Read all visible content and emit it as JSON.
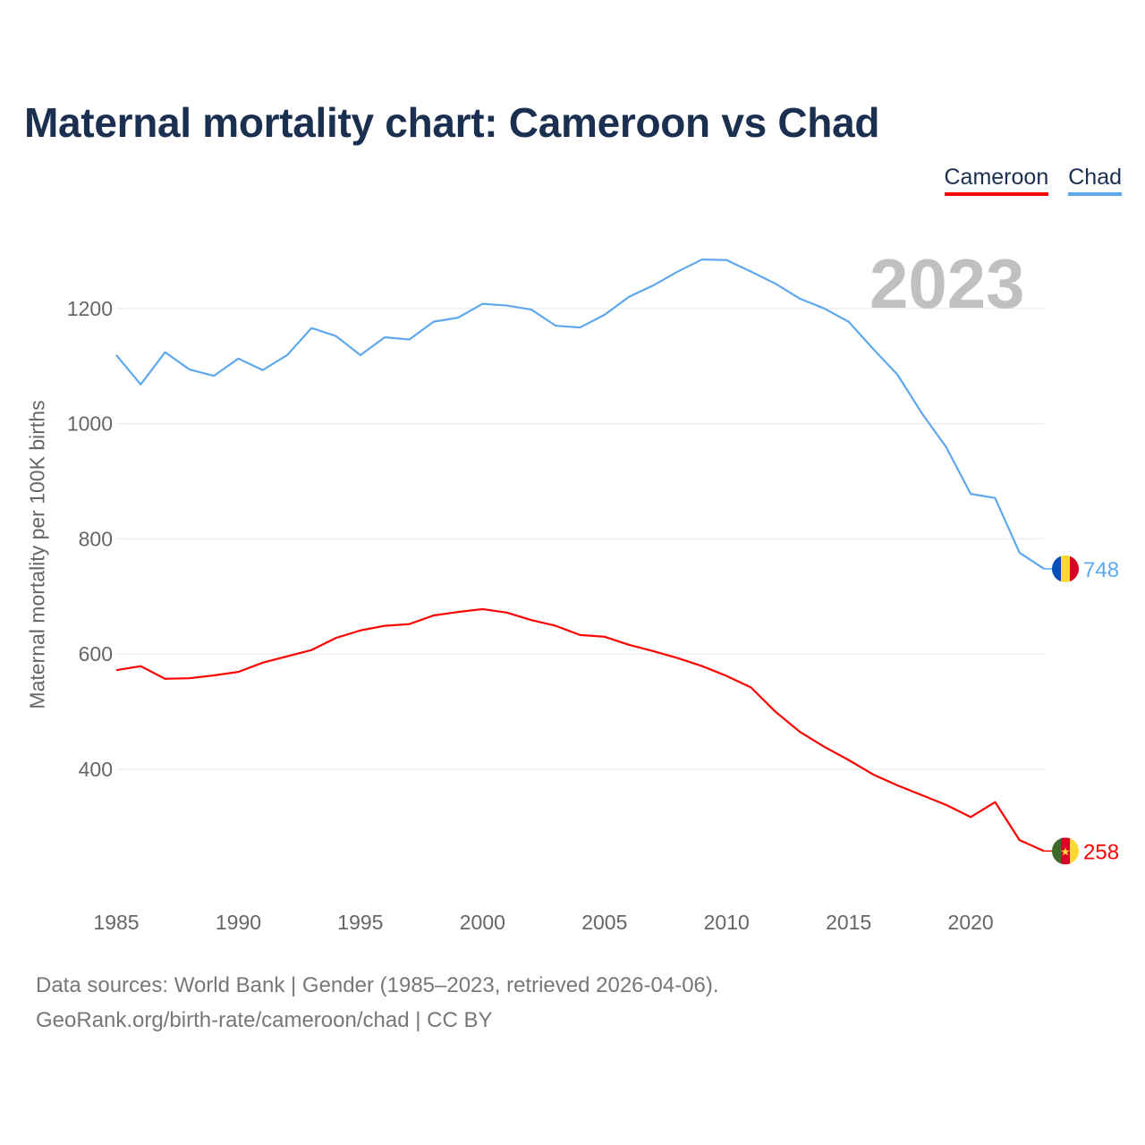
{
  "title": "Maternal mortality chart: Cameroon vs Chad",
  "current_year": "2023",
  "footer": {
    "line1": "Data sources: World Bank | Gender (1985–2023, retrieved 2026-04-06).",
    "line2": "GeoRank.org/birth-rate/cameroon/chad | CC BY"
  },
  "chart_data": {
    "type": "line",
    "title": "Maternal mortality chart: Cameroon vs Chad",
    "xlabel": "",
    "ylabel": "Maternal mortality per 100K births",
    "xlim": [
      1985,
      2023
    ],
    "ylim": [
      198,
      1355
    ],
    "xticks": [
      1985,
      1990,
      1995,
      2000,
      2005,
      2010,
      2015,
      2020
    ],
    "yticks": [
      400,
      600,
      800,
      1000,
      1200
    ],
    "grid": true,
    "legend_position": "top-right",
    "x": [
      1985,
      1986,
      1987,
      1988,
      1989,
      1990,
      1991,
      1992,
      1993,
      1994,
      1995,
      1996,
      1997,
      1998,
      1999,
      2000,
      2001,
      2002,
      2003,
      2004,
      2005,
      2006,
      2007,
      2008,
      2009,
      2010,
      2011,
      2012,
      2013,
      2014,
      2015,
      2016,
      2017,
      2018,
      2019,
      2020,
      2021,
      2022,
      2023
    ],
    "series": [
      {
        "name": "Cameroon",
        "color": "#ff0000",
        "end_label": "258",
        "values": [
          572,
          579,
          557,
          558,
          563,
          569,
          585,
          596,
          607,
          628,
          641,
          649,
          652,
          667,
          673,
          678,
          672,
          659,
          649,
          633,
          630,
          616,
          605,
          593,
          579,
          562,
          542,
          500,
          465,
          439,
          416,
          391,
          372,
          355,
          338,
          317,
          343,
          277,
          258
        ]
      },
      {
        "name": "Chad",
        "color": "#5ea8ee",
        "end_label": "748",
        "values": [
          1119,
          1068,
          1124,
          1094,
          1083,
          1113,
          1093,
          1119,
          1166,
          1152,
          1119,
          1150,
          1146,
          1177,
          1184,
          1208,
          1205,
          1198,
          1170,
          1167,
          1189,
          1220,
          1240,
          1264,
          1285,
          1284,
          1264,
          1243,
          1217,
          1200,
          1177,
          1130,
          1085,
          1018,
          959,
          878,
          871,
          776,
          748
        ]
      }
    ]
  }
}
